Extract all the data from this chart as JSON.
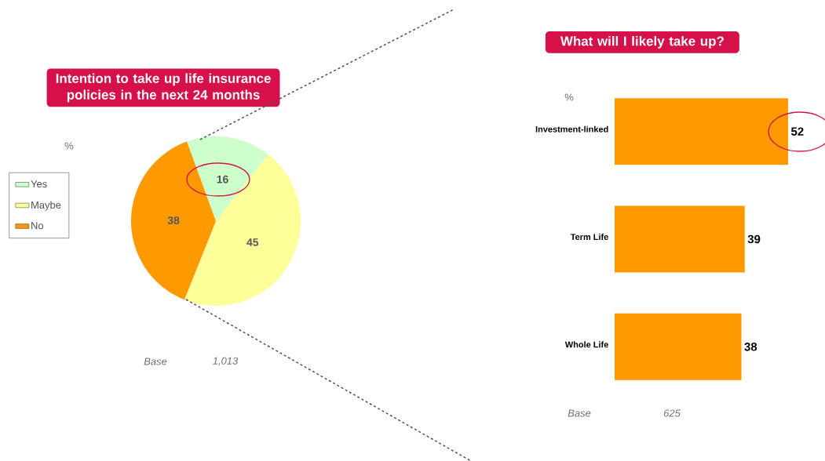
{
  "chart_data": [
    {
      "type": "pie",
      "title": "Intention to take up life insurance policies in the next 24 months",
      "categories": [
        "Yes",
        "Maybe",
        "No"
      ],
      "values": [
        16,
        45,
        38
      ],
      "colors": [
        "#ccffcc",
        "#ffff99",
        "#ff9900"
      ],
      "legend": "left",
      "data_labels": true,
      "annotations": [
        "%",
        "Base",
        "1,013"
      ]
    },
    {
      "type": "bar",
      "orientation": "horizontal",
      "title": "What will I likely take up?",
      "categories": [
        "Investment-linked",
        "Term Life",
        "Whole Life"
      ],
      "values": [
        52,
        39,
        38
      ],
      "color": "#ff9900",
      "data_labels": true,
      "annotations": [
        "%",
        "Base",
        "625"
      ]
    }
  ]
}
